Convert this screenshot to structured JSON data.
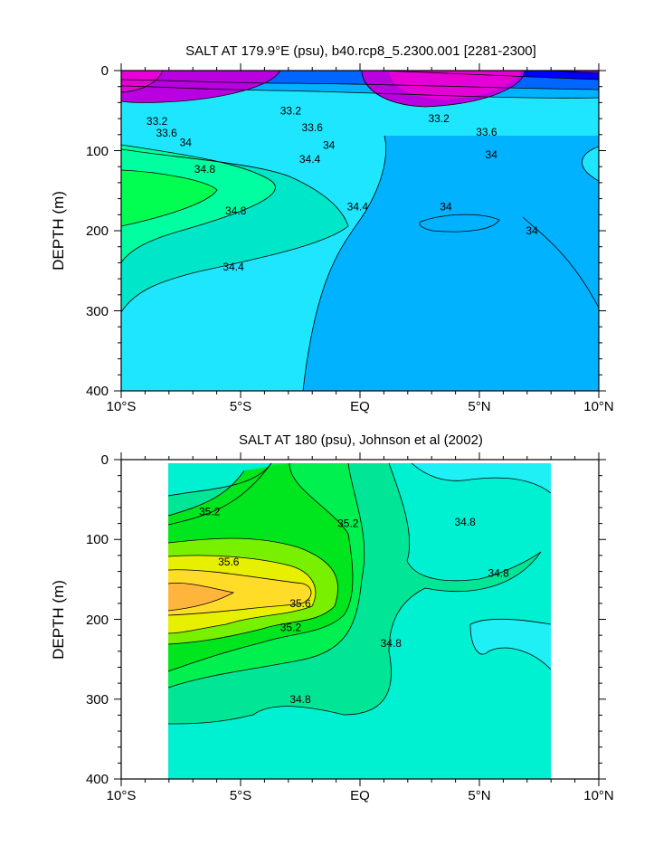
{
  "chart_data": [
    {
      "type": "contour",
      "title": "SALT AT 179.9°E (psu), b40.rcp8_5.2300.001 [2281-2300]",
      "ylabel": "DEPTH (m)",
      "xlabel": "",
      "xlim": [
        -10,
        10
      ],
      "ylim": [
        400,
        0
      ],
      "xticks": [
        -10,
        -5,
        0,
        5,
        10
      ],
      "xtick_labels": [
        "10°S",
        "5°S",
        "EQ",
        "5°N",
        "10°N"
      ],
      "yticks": [
        0,
        100,
        200,
        300,
        400
      ],
      "ytick_labels": [
        "0",
        "100",
        "200",
        "300",
        "400"
      ],
      "contour_labels": [
        {
          "text": "33.2",
          "x": -8.5,
          "y": 63
        },
        {
          "text": "33.2",
          "x": -2.9,
          "y": 50
        },
        {
          "text": "33.2",
          "x": 3.3,
          "y": 60
        },
        {
          "text": "33.6",
          "x": -8.1,
          "y": 78
        },
        {
          "text": "33.6",
          "x": -2.0,
          "y": 71
        },
        {
          "text": "33.6",
          "x": 5.3,
          "y": 77
        },
        {
          "text": "34",
          "x": -7.3,
          "y": 90
        },
        {
          "text": "34",
          "x": -1.3,
          "y": 93
        },
        {
          "text": "34",
          "x": 5.5,
          "y": 105
        },
        {
          "text": "34.8",
          "x": -6.5,
          "y": 123
        },
        {
          "text": "34.4",
          "x": -2.1,
          "y": 111
        },
        {
          "text": "34.8",
          "x": -5.2,
          "y": 175
        },
        {
          "text": "34.4",
          "x": -0.1,
          "y": 170
        },
        {
          "text": "34",
          "x": 3.6,
          "y": 170
        },
        {
          "text": "34",
          "x": 7.2,
          "y": 200
        },
        {
          "text": "34.4",
          "x": -5.3,
          "y": 245
        }
      ]
    },
    {
      "type": "contour",
      "title": "SALT AT 180 (psu), Johnson et al (2002)",
      "ylabel": "DEPTH (m)",
      "xlabel": "",
      "xlim": [
        -10,
        10
      ],
      "ylim": [
        400,
        0
      ],
      "data_extent_x": [
        -8,
        8
      ],
      "xticks": [
        -10,
        -5,
        0,
        5,
        10
      ],
      "xtick_labels": [
        "10°S",
        "5°S",
        "EQ",
        "5°N",
        "10°N"
      ],
      "yticks": [
        0,
        100,
        200,
        300,
        400
      ],
      "ytick_labels": [
        "0",
        "100",
        "200",
        "300",
        "400"
      ],
      "contour_labels": [
        {
          "text": "35.2",
          "x": -6.3,
          "y": 65
        },
        {
          "text": "35.2",
          "x": -0.5,
          "y": 80
        },
        {
          "text": "34.8",
          "x": 4.4,
          "y": 78
        },
        {
          "text": "35.6",
          "x": -5.5,
          "y": 128
        },
        {
          "text": "34.8",
          "x": 5.8,
          "y": 142
        },
        {
          "text": "35.6",
          "x": -2.5,
          "y": 180
        },
        {
          "text": "35.2",
          "x": -2.9,
          "y": 210
        },
        {
          "text": "34.8",
          "x": 1.3,
          "y": 230
        },
        {
          "text": "34.8",
          "x": -2.5,
          "y": 300
        }
      ]
    }
  ]
}
